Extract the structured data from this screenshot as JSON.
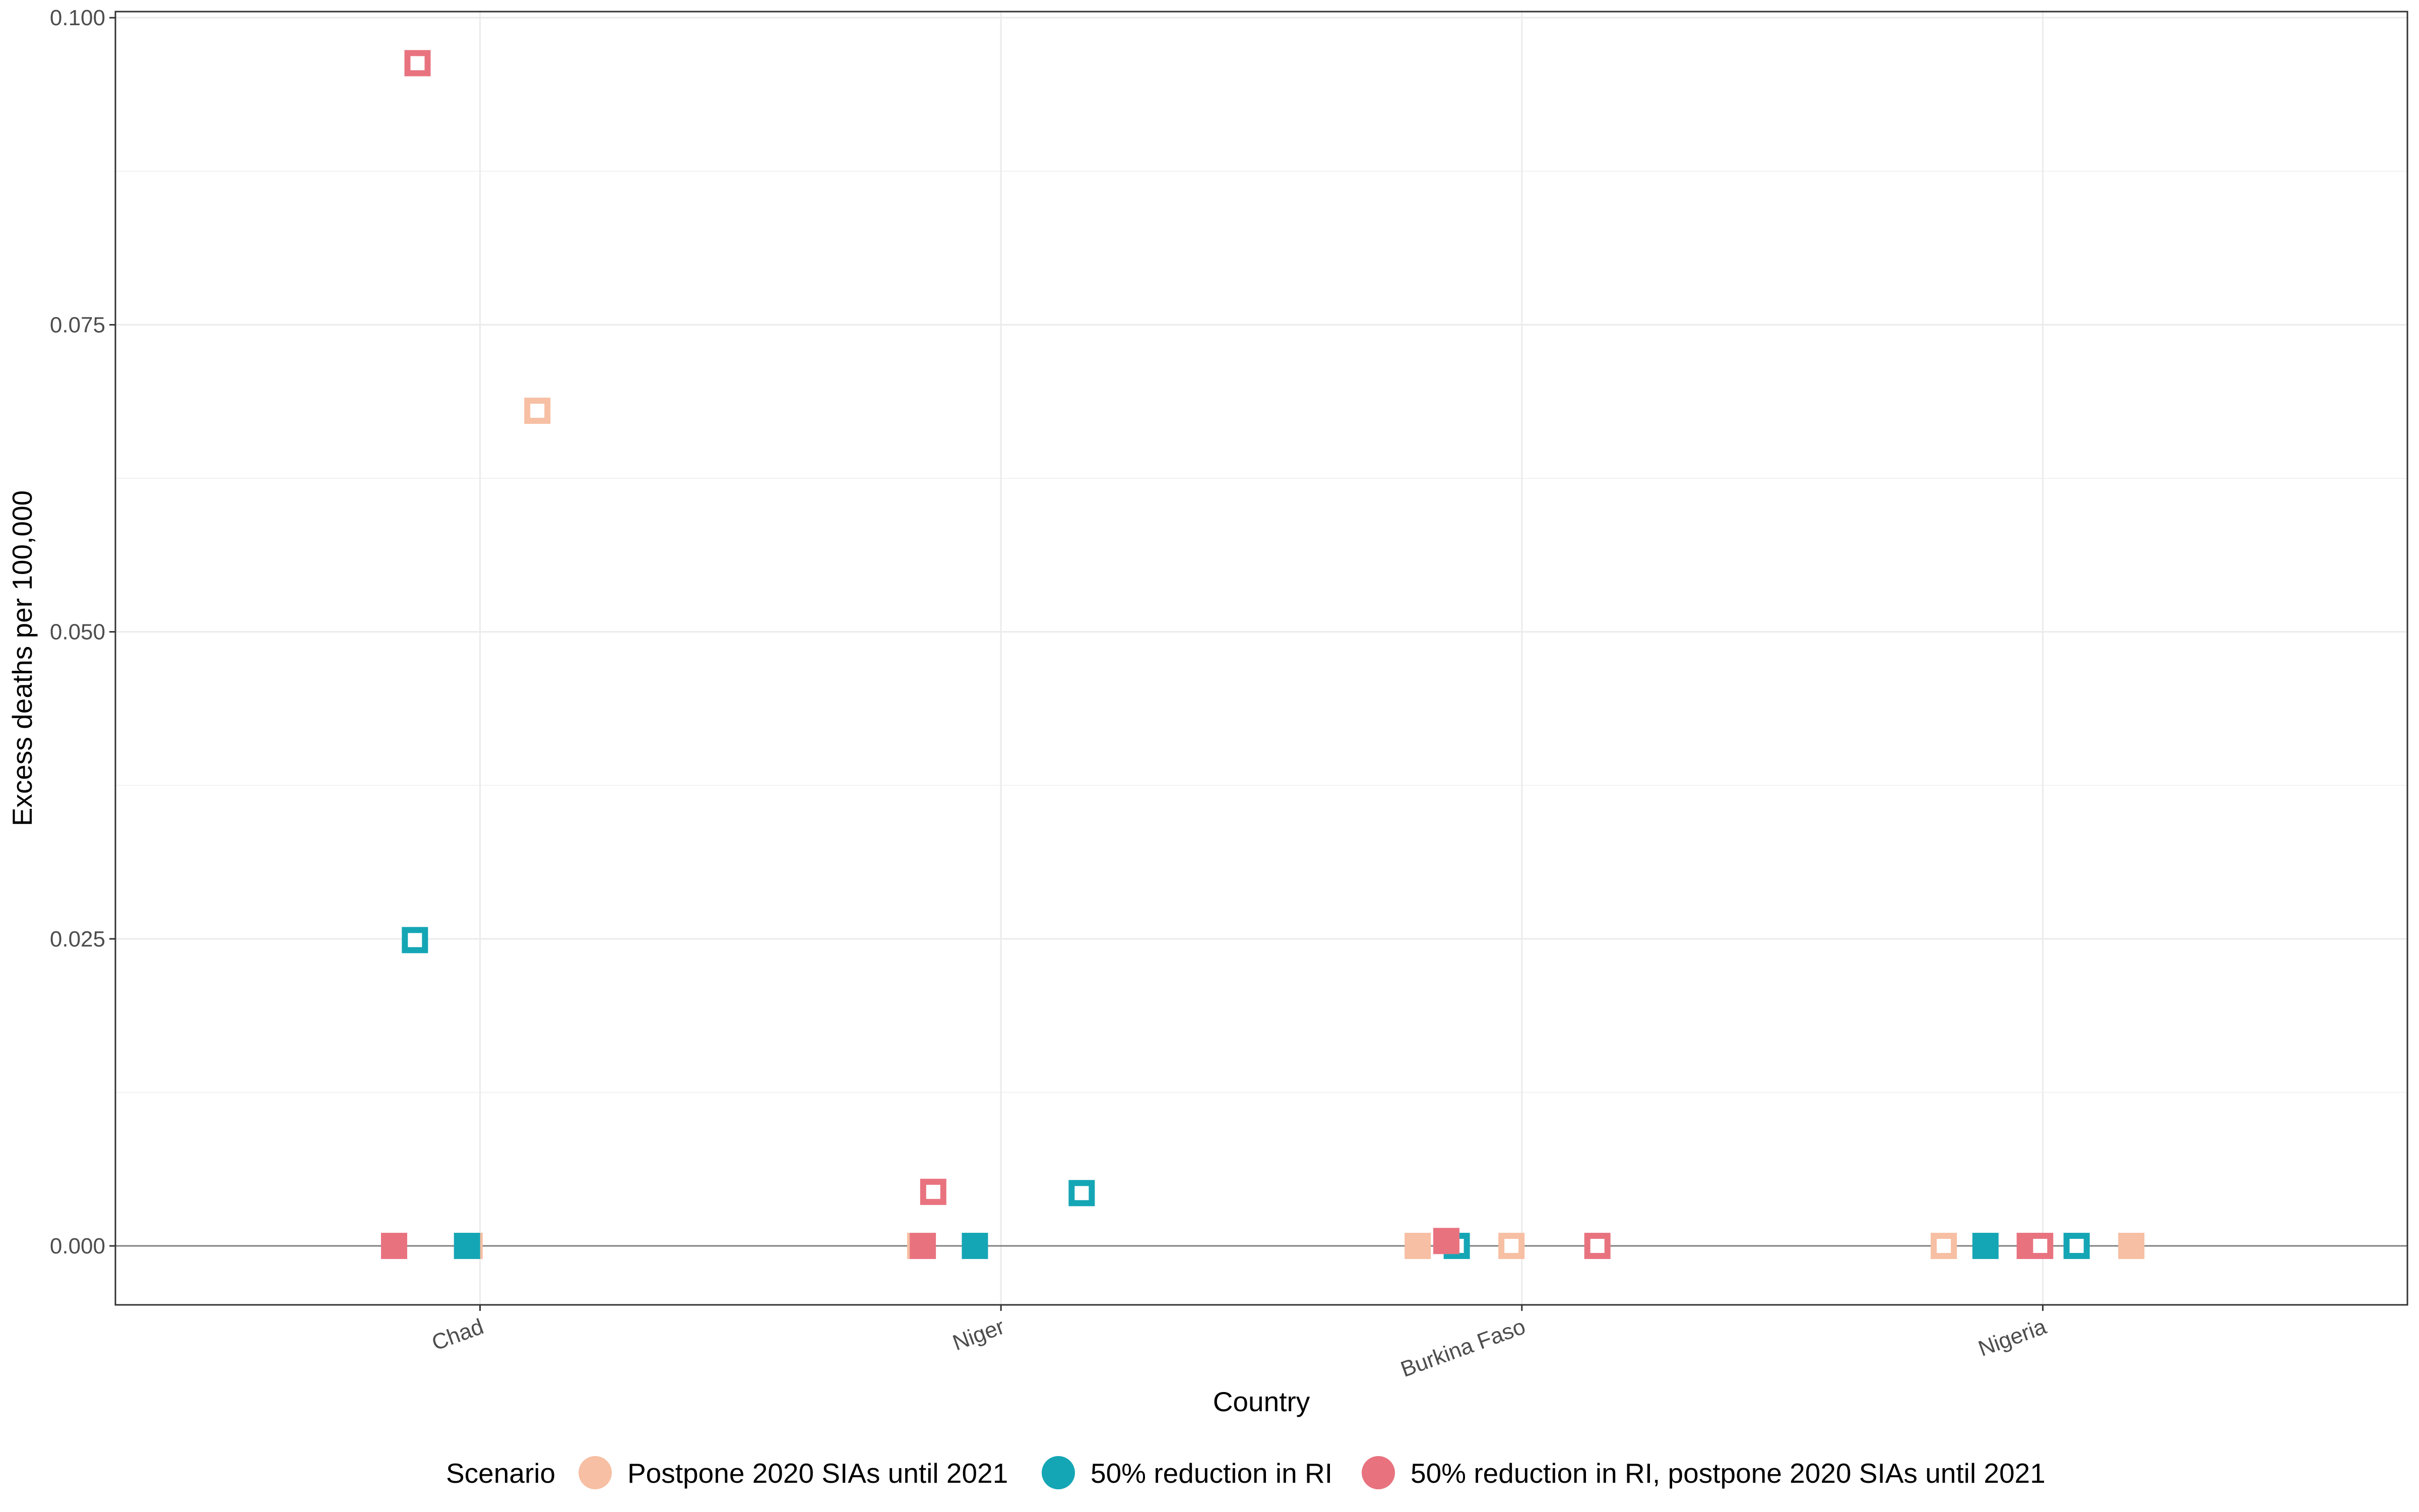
{
  "chart_data": {
    "type": "scatter",
    "xlabel": "Country",
    "ylabel": "Excess deaths per 100,000",
    "categories": [
      "Chad",
      "Niger",
      "Burkina Faso",
      "Nigeria"
    ],
    "ylim": [
      -0.0048,
      0.1005
    ],
    "yticks": [
      "0.000",
      "0.025",
      "0.050",
      "0.075",
      "0.100"
    ],
    "grid": true,
    "legend": {
      "title": "Scenario",
      "position": "bottom",
      "entries": [
        {
          "label": "Postpone 2020 SIAs until 2021",
          "color": "#F7BFA3"
        },
        {
          "label": "50% reduction in RI",
          "color": "#15A6B5"
        },
        {
          "label": "50% reduction in RI, postpone 2020 SIAs until 2021",
          "color": "#E8737F"
        }
      ]
    },
    "series": [
      {
        "name": "Postpone 2020 SIAs until 2021",
        "color": "#F7BFA3",
        "points": [
          {
            "country": "Chad",
            "offset": -0.02,
            "y": 0.0,
            "marker": "filled"
          },
          {
            "country": "Chad",
            "offset": 0.11,
            "y": 0.068,
            "marker": "open"
          },
          {
            "country": "Niger",
            "offset": -0.155,
            "y": 0.0,
            "marker": "filled"
          },
          {
            "country": "Niger",
            "offset": -0.05,
            "y": 0.0,
            "marker": "open"
          },
          {
            "country": "Burkina Faso",
            "offset": -0.2,
            "y": 0.0,
            "marker": "filled"
          },
          {
            "country": "Burkina Faso",
            "offset": -0.02,
            "y": 0.0,
            "marker": "open"
          },
          {
            "country": "Nigeria",
            "offset": -0.19,
            "y": 0.0,
            "marker": "open"
          },
          {
            "country": "Nigeria",
            "offset": 0.17,
            "y": 0.0,
            "marker": "filled"
          }
        ]
      },
      {
        "name": "50% reduction in RI",
        "color": "#15A6B5",
        "points": [
          {
            "country": "Chad",
            "offset": -0.025,
            "y": 0.0,
            "marker": "filled"
          },
          {
            "country": "Chad",
            "offset": -0.125,
            "y": 0.0249,
            "marker": "open"
          },
          {
            "country": "Niger",
            "offset": -0.05,
            "y": 0.0,
            "marker": "filled"
          },
          {
            "country": "Niger",
            "offset": 0.155,
            "y": 0.0043,
            "marker": "open"
          },
          {
            "country": "Burkina Faso",
            "offset": -0.125,
            "y": 0.0,
            "marker": "open"
          },
          {
            "country": "Nigeria",
            "offset": -0.11,
            "y": 0.0,
            "marker": "filled"
          },
          {
            "country": "Nigeria",
            "offset": 0.065,
            "y": 0.0,
            "marker": "open"
          }
        ]
      },
      {
        "name": "50% reduction in RI, postpone 2020 SIAs until 2021",
        "color": "#E8737F",
        "points": [
          {
            "country": "Chad",
            "offset": -0.165,
            "y": 0.0,
            "marker": "filled"
          },
          {
            "country": "Chad",
            "offset": -0.12,
            "y": 0.0963,
            "marker": "open"
          },
          {
            "country": "Niger",
            "offset": -0.15,
            "y": 0.0,
            "marker": "filled"
          },
          {
            "country": "Niger",
            "offset": -0.13,
            "y": 0.0044,
            "marker": "open"
          },
          {
            "country": "Burkina Faso",
            "offset": -0.145,
            "y": 0.0004,
            "marker": "filled"
          },
          {
            "country": "Burkina Faso",
            "offset": 0.145,
            "y": 0.0,
            "marker": "open"
          },
          {
            "country": "Nigeria",
            "offset": -0.025,
            "y": 0.0,
            "marker": "filled"
          },
          {
            "country": "Nigeria",
            "offset": -0.005,
            "y": 0.0,
            "marker": "open"
          }
        ]
      }
    ]
  }
}
